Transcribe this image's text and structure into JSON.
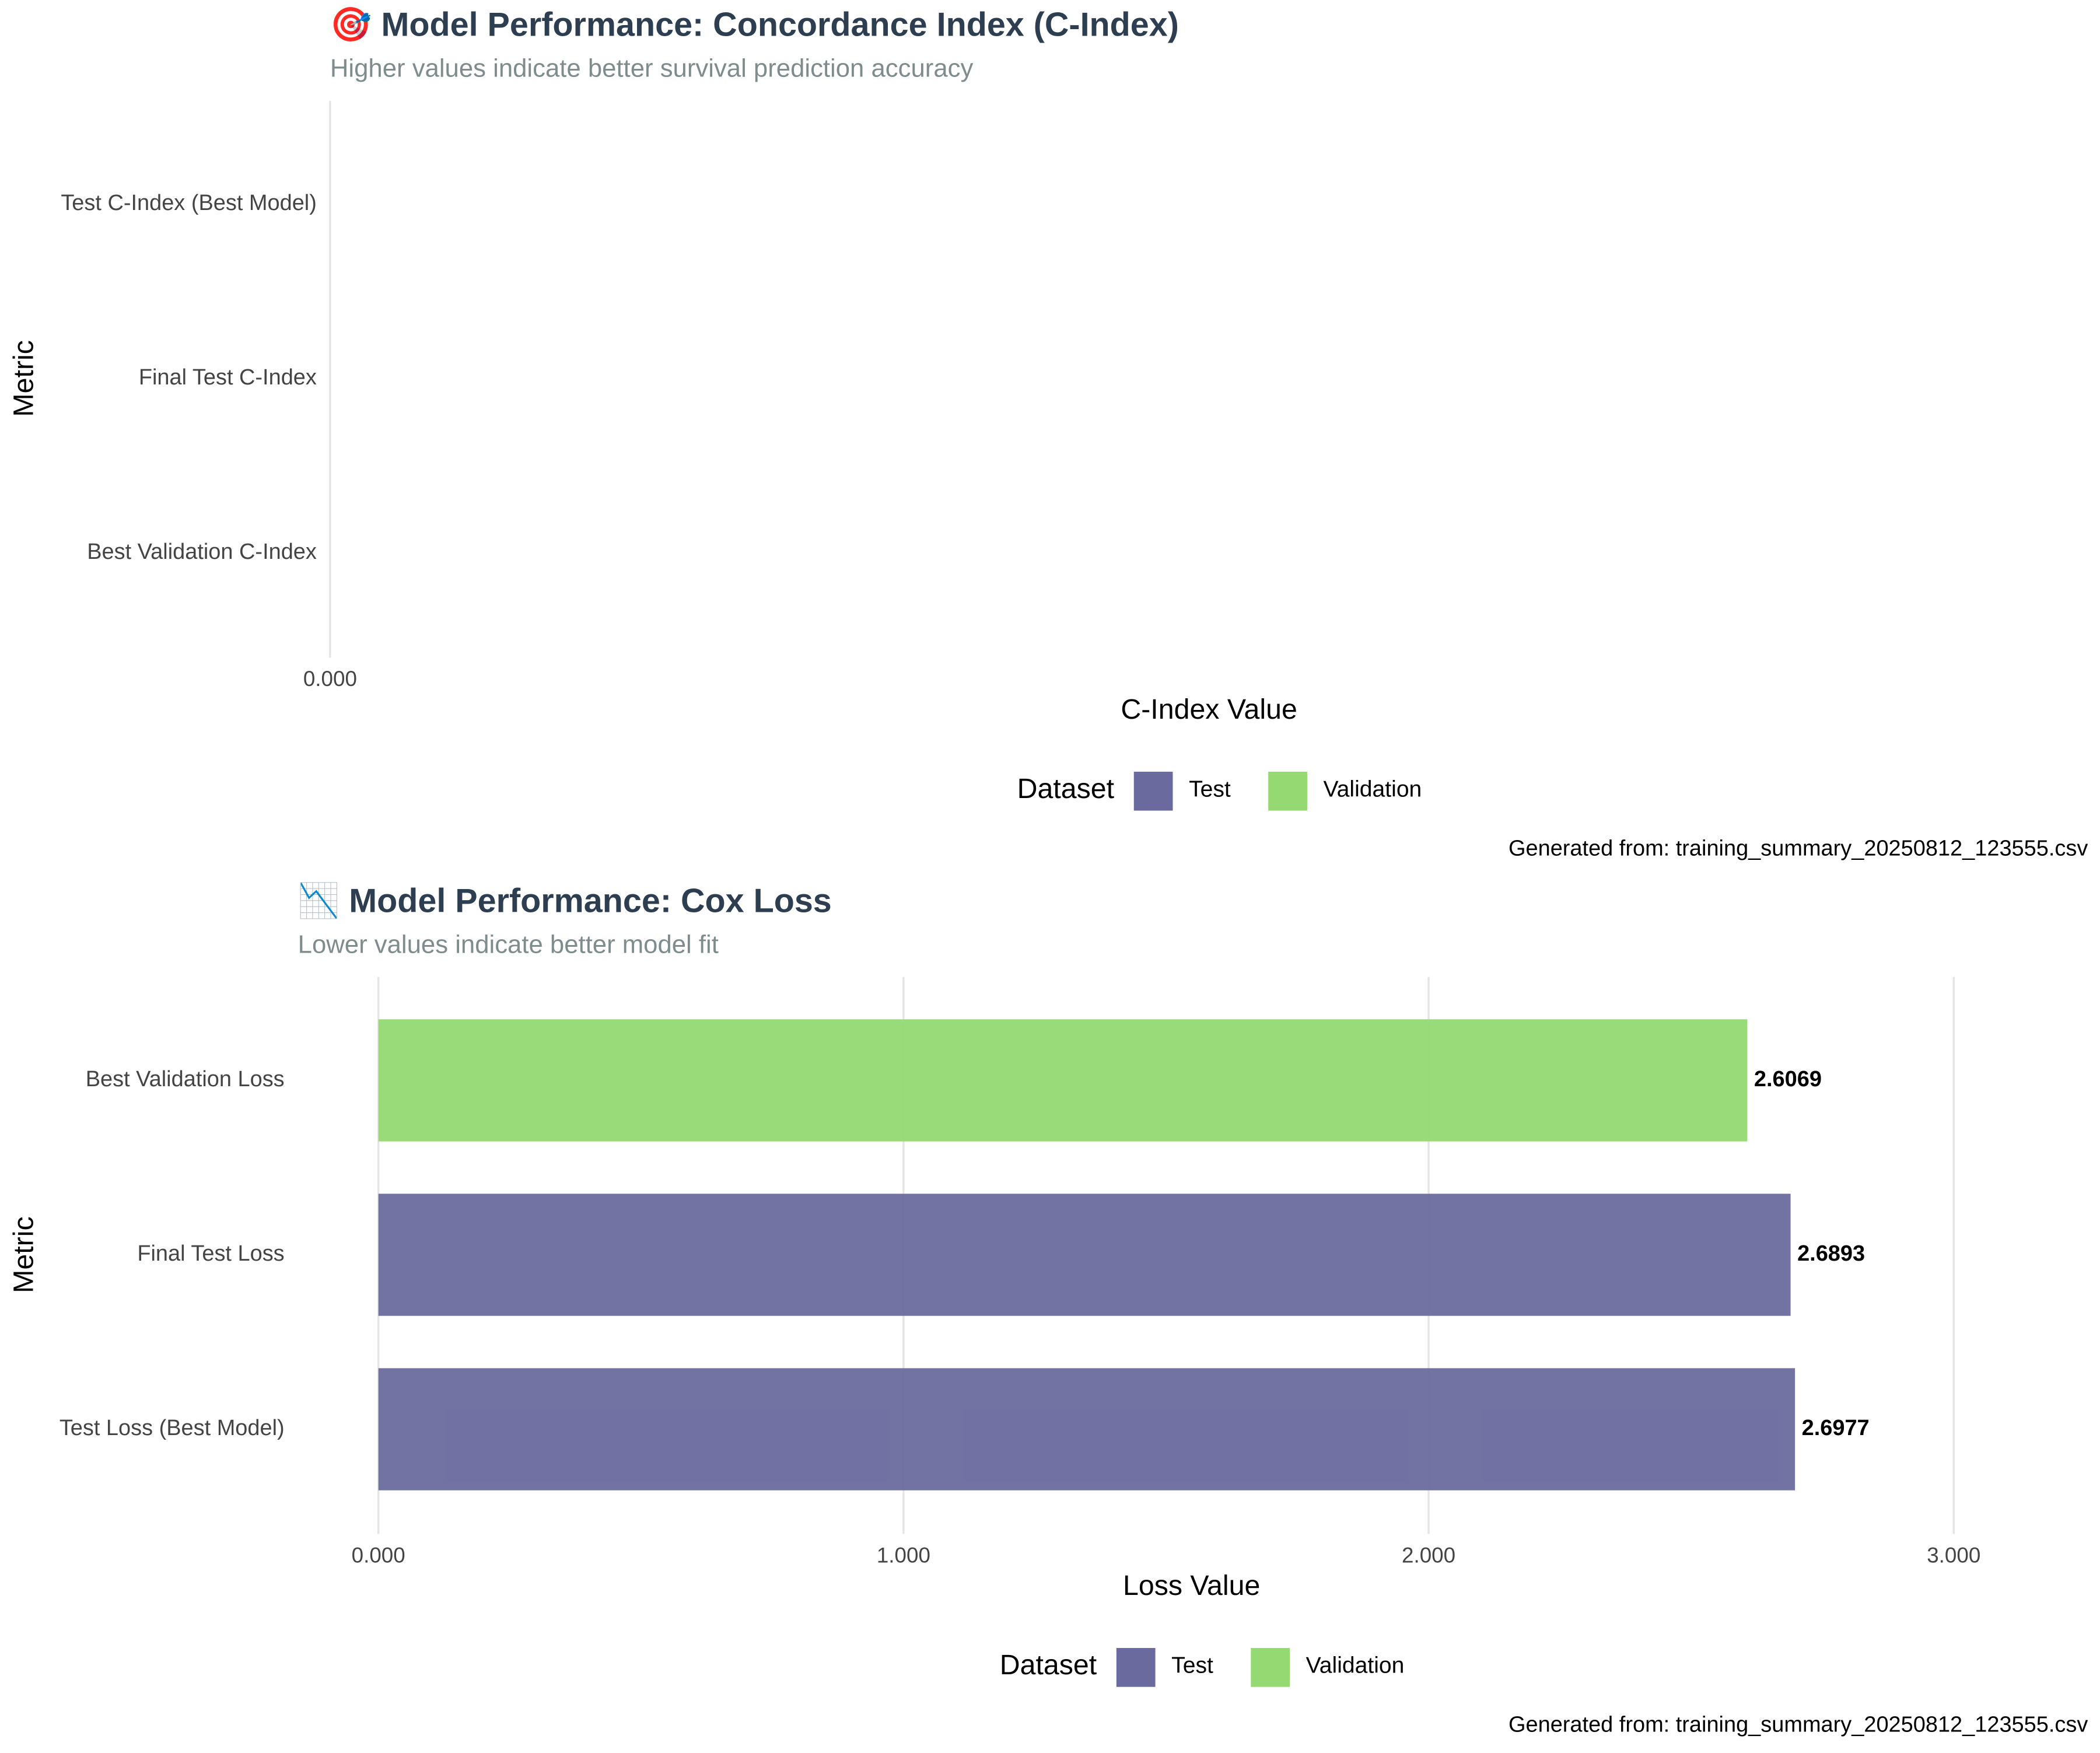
{
  "chart_data": [
    {
      "type": "bar",
      "orientation": "horizontal",
      "title": "🎯 Model Performance: Concordance Index (C-Index)",
      "subtitle": "Higher values indicate better survival prediction accuracy",
      "x_label": "C-Index Value",
      "y_label": "Metric",
      "categories": [
        "Test C-Index (Best Model)",
        "Final Test C-Index",
        "Best Validation C-Index"
      ],
      "series": [
        {
          "name": "Test",
          "color": "#6a6a9e",
          "values": [
            null,
            null,
            null
          ]
        },
        {
          "name": "Validation",
          "color": "#95d972",
          "values": [
            null,
            null,
            null
          ]
        }
      ],
      "legend_title": "Dataset",
      "xlim": [
        0,
        3
      ],
      "xticks": [
        {
          "value": 0,
          "label": "0.000"
        }
      ],
      "grid": true,
      "caption": "Generated from: training_summary_20250812_123555.csv"
    },
    {
      "type": "bar",
      "orientation": "horizontal",
      "title": "📉 Model Performance: Cox Loss",
      "subtitle": "Lower values indicate better model fit",
      "x_label": "Loss Value",
      "y_label": "Metric",
      "categories": [
        "Best Validation Loss",
        "Final Test Loss",
        "Test Loss (Best Model)"
      ],
      "series": [
        {
          "name": "Test",
          "color": "#6a6a9e",
          "values": [
            null,
            2.6893,
            2.6977
          ]
        },
        {
          "name": "Validation",
          "color": "#95d972",
          "values": [
            2.6069,
            null,
            null
          ]
        }
      ],
      "legend_title": "Dataset",
      "xlim": [
        0,
        3
      ],
      "xticks": [
        {
          "value": 0,
          "label": "0.000"
        },
        {
          "value": 1,
          "label": "1.000"
        },
        {
          "value": 2,
          "label": "2.000"
        },
        {
          "value": 3,
          "label": "3.000"
        }
      ],
      "grid": true,
      "caption": "Generated from: training_summary_20250812_123555.csv"
    }
  ]
}
